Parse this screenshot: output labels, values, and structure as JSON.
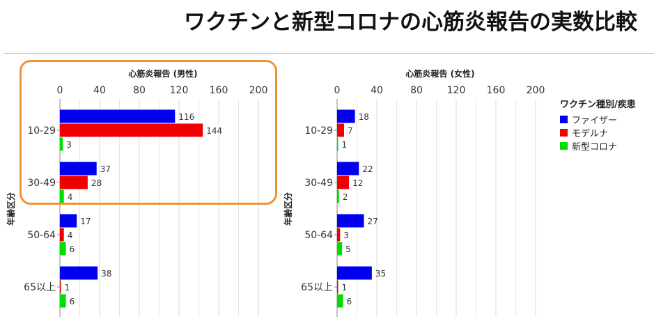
{
  "title": "ワクチンと新型コロナの心筋炎報告の実数比較",
  "legend": {
    "title": "ワクチン種別/疾患",
    "items": [
      {
        "label": "ファイザー",
        "color": "#0000ee"
      },
      {
        "label": "モデルナ",
        "color": "#ee0000"
      },
      {
        "label": "新型コロナ",
        "color": "#00dd00"
      }
    ]
  },
  "colors": {
    "pfizer": "#0000ee",
    "moderna": "#ee0000",
    "covid": "#00dd00",
    "highlight": "#f0913a"
  },
  "chart_data": [
    {
      "type": "bar",
      "orientation": "horizontal",
      "title": "心筋炎報告 (男性)",
      "ylabel": "年齢区分",
      "xlim": [
        0,
        200
      ],
      "xticks": [
        "0",
        "40",
        "80",
        "120",
        "160",
        "200"
      ],
      "categories": [
        "10-29",
        "30-49",
        "50-64",
        "65以上"
      ],
      "series": [
        {
          "name": "ファイザー",
          "values": [
            116,
            37,
            17,
            38
          ]
        },
        {
          "name": "モデルナ",
          "values": [
            144,
            28,
            4,
            1
          ]
        },
        {
          "name": "新型コロナ",
          "values": [
            3,
            4,
            6,
            6
          ]
        }
      ],
      "grid": true
    },
    {
      "type": "bar",
      "orientation": "horizontal",
      "title": "心筋炎報告 (女性)",
      "ylabel": "年齢区分",
      "xlim": [
        0,
        200
      ],
      "xticks": [
        "0",
        "40",
        "80",
        "120",
        "160",
        "200"
      ],
      "categories": [
        "10-29",
        "30-49",
        "50-64",
        "65以上"
      ],
      "series": [
        {
          "name": "ファイザー",
          "values": [
            18,
            22,
            27,
            35
          ]
        },
        {
          "name": "モデルナ",
          "values": [
            7,
            12,
            3,
            1
          ]
        },
        {
          "name": "新型コロナ",
          "values": [
            1,
            2,
            5,
            6
          ]
        }
      ],
      "grid": true
    }
  ]
}
